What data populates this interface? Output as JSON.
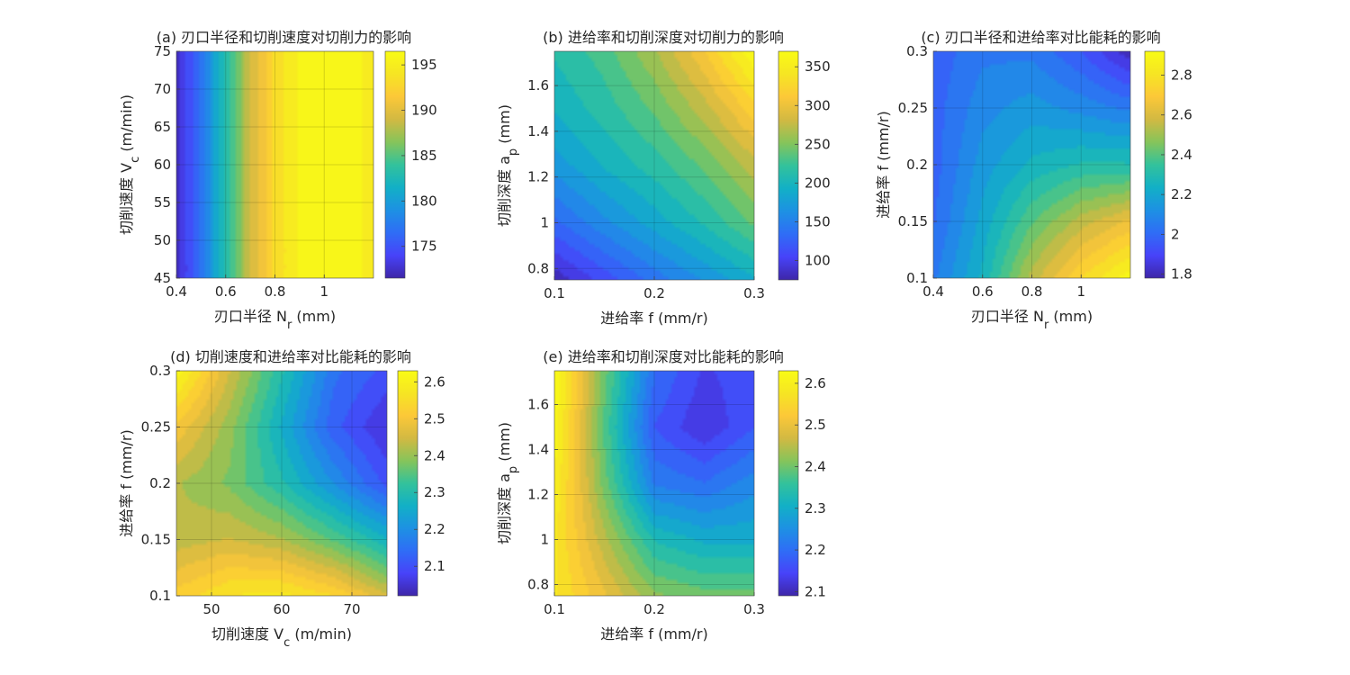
{
  "figure": {
    "background": "#ffffff"
  },
  "colormap": [
    "#3e26a8",
    "#4743f9",
    "#2f6df6",
    "#1d91e3",
    "#12b0c6",
    "#33c29b",
    "#86c45a",
    "#d2b942",
    "#fcc838",
    "#f6e523",
    "#f9fb15"
  ],
  "chart_data": [
    {
      "type": "heatmap",
      "title": "(a) 刃口半径和切削速度对切削力的影响",
      "xlabel": {
        "main": "刃口半径 N",
        "sub": "r",
        "unit": " (mm)"
      },
      "ylabel": {
        "main": "切削速度 V",
        "sub": "c",
        "unit": " (m/min)"
      },
      "xlim": [
        0.4,
        1.2
      ],
      "ylim": [
        45,
        75
      ],
      "xticks": [
        {
          "v": 0.4,
          "t": "0.4"
        },
        {
          "v": 0.6,
          "t": "0.6"
        },
        {
          "v": 0.8,
          "t": "0.8"
        },
        {
          "v": 1,
          "t": "1"
        }
      ],
      "yticks": [
        {
          "v": 45,
          "t": "45"
        },
        {
          "v": 50,
          "t": "50"
        },
        {
          "v": 55,
          "t": "55"
        },
        {
          "v": 60,
          "t": "60"
        },
        {
          "v": 65,
          "t": "65"
        },
        {
          "v": 70,
          "t": "70"
        },
        {
          "v": 75,
          "t": "75"
        }
      ],
      "clim": [
        171.5,
        196.5
      ],
      "cticks": [
        {
          "v": 175,
          "t": "175"
        },
        {
          "v": 180,
          "t": "180"
        },
        {
          "v": 185,
          "t": "185"
        },
        {
          "v": 190,
          "t": "190"
        },
        {
          "v": 195,
          "t": "195"
        }
      ],
      "x": [
        0.4,
        0.5,
        0.6,
        0.7,
        0.8,
        0.9,
        1.0,
        1.1,
        1.2
      ],
      "y": [
        45,
        75
      ],
      "z": [
        [
          172,
          177,
          183,
          189,
          193,
          195.5,
          196.3,
          196.1,
          194.6
        ],
        [
          172,
          177,
          183,
          189,
          193,
          195.5,
          196.3,
          196.1,
          194.6
        ]
      ]
    },
    {
      "type": "heatmap",
      "title": "(b) 进给率和切削深度对切削力的影响",
      "xlabel": {
        "main": "进给率 f",
        "sub": "",
        "unit": " (mm/r)"
      },
      "ylabel": {
        "main": "切削深度 a",
        "sub": "p",
        "unit": " (mm)"
      },
      "xlim": [
        0.1,
        0.3
      ],
      "ylim": [
        0.75,
        1.75
      ],
      "xticks": [
        {
          "v": 0.1,
          "t": "0.1"
        },
        {
          "v": 0.2,
          "t": "0.2"
        },
        {
          "v": 0.3,
          "t": "0.3"
        }
      ],
      "yticks": [
        {
          "v": 0.8,
          "t": "0.8"
        },
        {
          "v": 1.0,
          "t": "1"
        },
        {
          "v": 1.2,
          "t": "1.2"
        },
        {
          "v": 1.4,
          "t": "1.4"
        },
        {
          "v": 1.6,
          "t": "1.6"
        }
      ],
      "clim": [
        75,
        370
      ],
      "cticks": [
        {
          "v": 100,
          "t": "100"
        },
        {
          "v": 150,
          "t": "150"
        },
        {
          "v": 200,
          "t": "200"
        },
        {
          "v": 250,
          "t": "250"
        },
        {
          "v": 300,
          "t": "300"
        },
        {
          "v": 350,
          "t": "350"
        }
      ],
      "x": [
        0.1,
        0.15,
        0.2,
        0.25,
        0.3
      ],
      "y": [
        0.75,
        1.0,
        1.25,
        1.5,
        1.75
      ],
      "z": [
        [
          80,
          110,
          140,
          165,
          190
        ],
        [
          130,
          160,
          185,
          210,
          240
        ],
        [
          170,
          195,
          215,
          240,
          275
        ],
        [
          195,
          215,
          240,
          275,
          320
        ],
        [
          210,
          230,
          265,
          310,
          370
        ]
      ]
    },
    {
      "type": "heatmap",
      "title": "(c) 刃口半径和进给率对比能耗的影响",
      "xlabel": {
        "main": "刃口半径 N",
        "sub": "r",
        "unit": " (mm)"
      },
      "ylabel": {
        "main": "进给率 f",
        "sub": "",
        "unit": " (mm/r)"
      },
      "xlim": [
        0.4,
        1.2
      ],
      "ylim": [
        0.1,
        0.3
      ],
      "xticks": [
        {
          "v": 0.4,
          "t": "0.4"
        },
        {
          "v": 0.6,
          "t": "0.6"
        },
        {
          "v": 0.8,
          "t": "0.8"
        },
        {
          "v": 1,
          "t": "1"
        }
      ],
      "yticks": [
        {
          "v": 0.1,
          "t": "0.1"
        },
        {
          "v": 0.15,
          "t": "0.15"
        },
        {
          "v": 0.2,
          "t": "0.2"
        },
        {
          "v": 0.25,
          "t": "0.25"
        },
        {
          "v": 0.3,
          "t": "0.3"
        }
      ],
      "clim": [
        1.78,
        2.92
      ],
      "cticks": [
        {
          "v": 1.8,
          "t": "1.8"
        },
        {
          "v": 2.0,
          "t": "2"
        },
        {
          "v": 2.2,
          "t": "2.2"
        },
        {
          "v": 2.4,
          "t": "2.4"
        },
        {
          "v": 2.6,
          "t": "2.6"
        },
        {
          "v": 2.8,
          "t": "2.8"
        }
      ],
      "x": [
        0.4,
        0.6,
        0.8,
        1.0,
        1.2
      ],
      "y": [
        0.1,
        0.15,
        0.2,
        0.25,
        0.3
      ],
      "z": [
        [
          2.05,
          2.25,
          2.55,
          2.75,
          2.9
        ],
        [
          2.0,
          2.2,
          2.4,
          2.55,
          2.65
        ],
        [
          1.98,
          2.15,
          2.25,
          2.3,
          2.3
        ],
        [
          1.98,
          2.1,
          2.15,
          2.1,
          2.05
        ],
        [
          1.97,
          2.05,
          2.05,
          1.95,
          1.8
        ]
      ]
    },
    {
      "type": "heatmap",
      "title": "(d) 切削速度和进给率对比能耗的影响",
      "xlabel": {
        "main": "切削速度 V",
        "sub": "c",
        "unit": " (m/min)"
      },
      "ylabel": {
        "main": "进给率 f",
        "sub": "",
        "unit": " (mm/r)"
      },
      "xlim": [
        45,
        75
      ],
      "ylim": [
        0.1,
        0.3
      ],
      "xticks": [
        {
          "v": 50,
          "t": "50"
        },
        {
          "v": 60,
          "t": "60"
        },
        {
          "v": 70,
          "t": "70"
        }
      ],
      "yticks": [
        {
          "v": 0.1,
          "t": "0.1"
        },
        {
          "v": 0.15,
          "t": "0.15"
        },
        {
          "v": 0.2,
          "t": "0.2"
        },
        {
          "v": 0.25,
          "t": "0.25"
        },
        {
          "v": 0.3,
          "t": "0.3"
        }
      ],
      "clim": [
        2.02,
        2.63
      ],
      "cticks": [
        {
          "v": 2.1,
          "t": "2.1"
        },
        {
          "v": 2.2,
          "t": "2.2"
        },
        {
          "v": 2.3,
          "t": "2.3"
        },
        {
          "v": 2.4,
          "t": "2.4"
        },
        {
          "v": 2.5,
          "t": "2.5"
        },
        {
          "v": 2.6,
          "t": "2.6"
        }
      ],
      "x": [
        45,
        52.5,
        60,
        67.5,
        75
      ],
      "y": [
        0.1,
        0.15,
        0.2,
        0.25,
        0.3
      ],
      "z": [
        [
          2.52,
          2.57,
          2.58,
          2.54,
          2.45
        ],
        [
          2.43,
          2.45,
          2.42,
          2.35,
          2.27
        ],
        [
          2.42,
          2.38,
          2.3,
          2.2,
          2.1
        ],
        [
          2.5,
          2.4,
          2.26,
          2.12,
          2.05
        ],
        [
          2.62,
          2.45,
          2.3,
          2.15,
          2.1
        ]
      ]
    },
    {
      "type": "heatmap",
      "title": "(e) 进给率和切削深度对比能耗的影响",
      "xlabel": {
        "main": "进给率 f",
        "sub": "",
        "unit": " (mm/r)"
      },
      "ylabel": {
        "main": "切削深度 a",
        "sub": "p",
        "unit": " (mm)"
      },
      "xlim": [
        0.1,
        0.3
      ],
      "ylim": [
        0.75,
        1.75
      ],
      "xticks": [
        {
          "v": 0.1,
          "t": "0.1"
        },
        {
          "v": 0.2,
          "t": "0.2"
        },
        {
          "v": 0.3,
          "t": "0.3"
        }
      ],
      "yticks": [
        {
          "v": 0.8,
          "t": "0.8"
        },
        {
          "v": 1.0,
          "t": "1"
        },
        {
          "v": 1.2,
          "t": "1.2"
        },
        {
          "v": 1.4,
          "t": "1.4"
        },
        {
          "v": 1.6,
          "t": "1.6"
        }
      ],
      "clim": [
        2.09,
        2.63
      ],
      "cticks": [
        {
          "v": 2.1,
          "t": "2.1"
        },
        {
          "v": 2.2,
          "t": "2.2"
        },
        {
          "v": 2.3,
          "t": "2.3"
        },
        {
          "v": 2.4,
          "t": "2.4"
        },
        {
          "v": 2.5,
          "t": "2.5"
        },
        {
          "v": 2.6,
          "t": "2.6"
        }
      ],
      "x": [
        0.1,
        0.15,
        0.2,
        0.25,
        0.3
      ],
      "y": [
        0.75,
        1.0,
        1.25,
        1.5,
        1.75
      ],
      "z": [
        [
          2.58,
          2.5,
          2.42,
          2.4,
          2.4
        ],
        [
          2.58,
          2.45,
          2.33,
          2.3,
          2.3
        ],
        [
          2.6,
          2.4,
          2.22,
          2.2,
          2.24
        ],
        [
          2.62,
          2.38,
          2.17,
          2.12,
          2.17
        ],
        [
          2.63,
          2.4,
          2.2,
          2.14,
          2.16
        ]
      ]
    }
  ]
}
